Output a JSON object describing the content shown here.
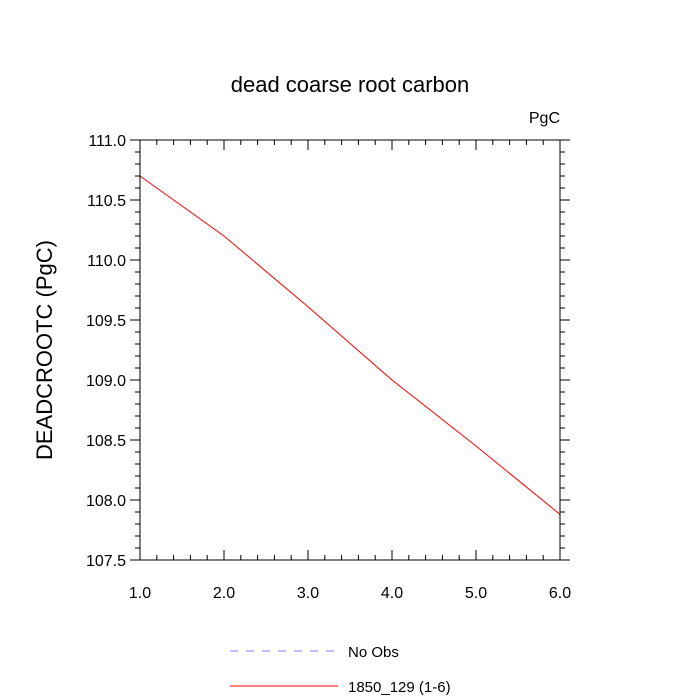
{
  "chart_data": {
    "type": "line",
    "title": "dead coarse root carbon",
    "units_label": "PgC",
    "ylabel": "DEADCROOTC  (PgC)",
    "xlabel": "",
    "xlim": [
      1.0,
      6.0
    ],
    "ylim": [
      107.5,
      111.0
    ],
    "x_ticks": [
      "1.0",
      "2.0",
      "3.0",
      "4.0",
      "5.0",
      "6.0"
    ],
    "y_ticks": [
      "107.5",
      "108.0",
      "108.5",
      "109.0",
      "109.5",
      "110.0",
      "110.5",
      "111.0"
    ],
    "x": [
      1,
      2,
      3,
      4,
      5,
      6
    ],
    "series": [
      {
        "name": "1850_129 (1-6)",
        "color": "#ff0000",
        "dash": "solid",
        "values": [
          110.7,
          110.2,
          109.61,
          109.0,
          108.45,
          107.88
        ]
      }
    ],
    "legend": [
      {
        "label": "No Obs",
        "color": "#8080ff",
        "dash": "dashed"
      },
      {
        "label": "1850_129 (1-6)",
        "color": "#ff0000",
        "dash": "solid"
      }
    ],
    "legend_position": "bottom",
    "grid": false
  }
}
